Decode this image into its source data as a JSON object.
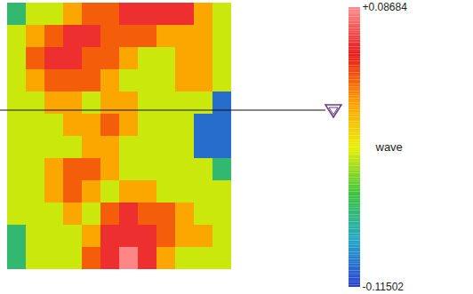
{
  "chart_data": {
    "type": "heatmap",
    "tick_labels": false,
    "z": [
      [
        -0.06,
        -0.02,
        -0.02,
        0.015,
        0.035,
        0.035,
        0.06,
        0.06,
        0.06,
        0.06,
        0.015,
        -0.02
      ],
      [
        -0.02,
        0.015,
        0.035,
        0.06,
        0.06,
        0.035,
        0.035,
        0.035,
        0.015,
        0.015,
        0.015,
        -0.02
      ],
      [
        -0.02,
        0.035,
        0.06,
        0.06,
        0.035,
        0.035,
        0.015,
        -0.02,
        -0.02,
        0.015,
        0.015,
        -0.02
      ],
      [
        -0.02,
        0.015,
        0.035,
        0.035,
        0.035,
        0.015,
        -0.02,
        -0.02,
        -0.02,
        0.015,
        0.015,
        -0.02
      ],
      [
        -0.02,
        -0.02,
        0.015,
        0.015,
        -0.02,
        0.015,
        0.015,
        -0.02,
        -0.02,
        -0.02,
        -0.02,
        -0.1
      ],
      [
        -0.02,
        -0.02,
        -0.02,
        0.015,
        0.015,
        0.035,
        0.015,
        -0.02,
        -0.02,
        -0.02,
        -0.1,
        -0.1
      ],
      [
        -0.02,
        -0.02,
        -0.02,
        -0.02,
        0.015,
        0.015,
        -0.02,
        -0.02,
        -0.02,
        -0.02,
        -0.1,
        -0.1
      ],
      [
        -0.02,
        -0.02,
        0.015,
        0.035,
        0.035,
        0.015,
        -0.02,
        -0.02,
        -0.02,
        -0.02,
        -0.02,
        -0.06
      ],
      [
        -0.02,
        -0.02,
        0.015,
        0.035,
        0.015,
        -0.02,
        0.015,
        0.015,
        -0.02,
        -0.02,
        -0.02,
        -0.02
      ],
      [
        -0.02,
        -0.02,
        -0.02,
        0.015,
        -0.02,
        0.035,
        0.06,
        0.035,
        0.035,
        0.015,
        -0.02,
        -0.02
      ],
      [
        -0.06,
        -0.02,
        -0.02,
        -0.02,
        0.015,
        0.06,
        0.06,
        0.06,
        0.035,
        0.015,
        0.015,
        -0.02
      ],
      [
        -0.06,
        -0.02,
        -0.02,
        -0.02,
        0.035,
        0.06,
        0.085,
        0.06,
        0.015,
        -0.02,
        -0.02,
        -0.02
      ]
    ],
    "zlim": [
      -0.11502,
      0.08684
    ],
    "zticks": [
      {
        "value": 0.08684,
        "label": "+0.08684"
      },
      -0.11502
    ],
    "colorbar_label": "wave"
  }
}
